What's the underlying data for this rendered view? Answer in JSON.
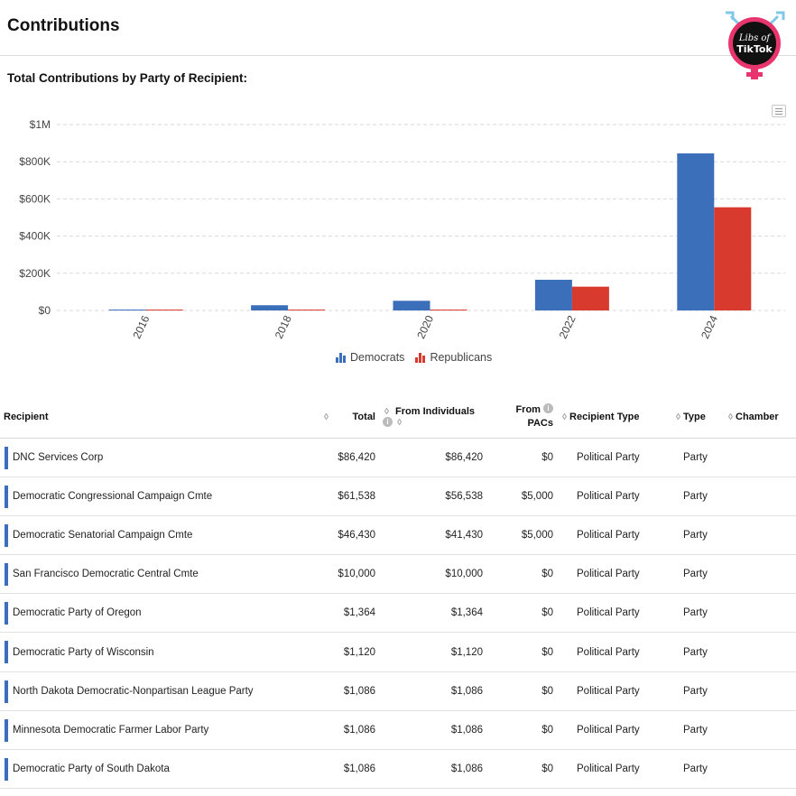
{
  "page": {
    "title": "Contributions",
    "section_title": "Total Contributions by Party of Recipient:"
  },
  "logo": {
    "line1": "Libs of",
    "line2": "TikTok"
  },
  "colors": {
    "democrats": "#3b6fba",
    "republicans": "#d83a2e",
    "grid": "#d9d9d9",
    "axis": "#444444"
  },
  "chart_data": {
    "type": "bar",
    "categories": [
      "2016",
      "2018",
      "2020",
      "2022",
      "2024"
    ],
    "series": [
      {
        "name": "Democrats",
        "values": [
          2000,
          28000,
          52000,
          165000,
          845000
        ]
      },
      {
        "name": "Republicans",
        "values": [
          1000,
          3000,
          2000,
          128000,
          555000
        ]
      }
    ],
    "yticks": [
      "$0",
      "$200K",
      "$400K",
      "$600K",
      "$800K",
      "$1M"
    ],
    "ylim": [
      0,
      1000000
    ],
    "grid": true,
    "legend_position": "bottom"
  },
  "table": {
    "headers": {
      "recipient": "Recipient",
      "total": "Total",
      "from_individuals": "From Individuals",
      "from_pacs_line1": "From",
      "from_pacs_line2": "PACs",
      "recipient_type": "Recipient Type",
      "type": "Type",
      "chamber": "Chamber"
    },
    "rows": [
      {
        "recipient": "DNC Services Corp",
        "total": "$86,420",
        "individuals": "$86,420",
        "pacs": "$0",
        "recipient_type": "Political Party",
        "type": "Party",
        "chamber": ""
      },
      {
        "recipient": "Democratic Congressional Campaign Cmte",
        "total": "$61,538",
        "individuals": "$56,538",
        "pacs": "$5,000",
        "recipient_type": "Political Party",
        "type": "Party",
        "chamber": ""
      },
      {
        "recipient": "Democratic Senatorial Campaign Cmte",
        "total": "$46,430",
        "individuals": "$41,430",
        "pacs": "$5,000",
        "recipient_type": "Political Party",
        "type": "Party",
        "chamber": ""
      },
      {
        "recipient": "San Francisco Democratic Central Cmte",
        "total": "$10,000",
        "individuals": "$10,000",
        "pacs": "$0",
        "recipient_type": "Political Party",
        "type": "Party",
        "chamber": ""
      },
      {
        "recipient": "Democratic Party of Oregon",
        "total": "$1,364",
        "individuals": "$1,364",
        "pacs": "$0",
        "recipient_type": "Political Party",
        "type": "Party",
        "chamber": ""
      },
      {
        "recipient": "Democratic Party of Wisconsin",
        "total": "$1,120",
        "individuals": "$1,120",
        "pacs": "$0",
        "recipient_type": "Political Party",
        "type": "Party",
        "chamber": ""
      },
      {
        "recipient": "North Dakota Democratic-Nonpartisan League Party",
        "total": "$1,086",
        "individuals": "$1,086",
        "pacs": "$0",
        "recipient_type": "Political Party",
        "type": "Party",
        "chamber": ""
      },
      {
        "recipient": "Minnesota Democratic Farmer Labor Party",
        "total": "$1,086",
        "individuals": "$1,086",
        "pacs": "$0",
        "recipient_type": "Political Party",
        "type": "Party",
        "chamber": ""
      },
      {
        "recipient": "Democratic Party of South Dakota",
        "total": "$1,086",
        "individuals": "$1,086",
        "pacs": "$0",
        "recipient_type": "Political Party",
        "type": "Party",
        "chamber": ""
      }
    ]
  }
}
